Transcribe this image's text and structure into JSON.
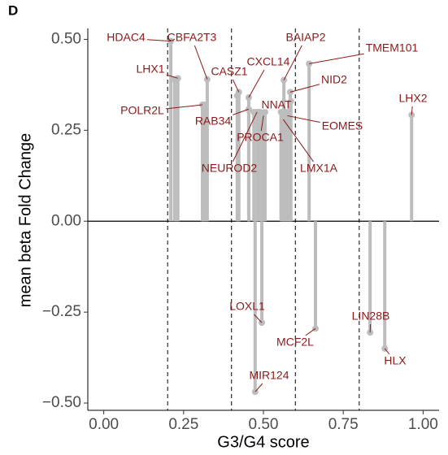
{
  "chart_data": {
    "type": "lollipop",
    "panel_label": "D",
    "x_label": "G3/G4 score",
    "y_label": "mean beta Fold Change",
    "x": [
      0.21,
      0.232,
      0.324,
      0.309,
      0.423,
      0.454,
      0.454,
      0.49,
      0.564,
      0.584,
      0.643,
      0.575,
      0.562,
      0.5,
      0.48,
      0.964,
      0.495,
      0.474,
      0.663,
      0.834,
      0.88,
      0.222,
      0.315,
      0.418,
      0.47,
      0.485,
      0.505,
      0.555,
      0.57,
      0.58,
      0.586
    ],
    "values": [
      0.495,
      0.393,
      0.39,
      0.32,
      0.355,
      0.308,
      0.34,
      0.3,
      0.388,
      0.355,
      0.433,
      0.29,
      0.28,
      0.29,
      0.3,
      0.292,
      -0.279,
      -0.469,
      -0.295,
      -0.306,
      -0.35,
      0.39,
      0.32,
      0.345,
      0.3,
      0.3,
      0.3,
      0.3,
      0.3,
      0.3,
      0.33
    ],
    "labels": [
      "HDAC4",
      "LHX1",
      "CBFA2T3",
      "POLR2L",
      "CASZ1",
      "RAB34",
      "CXCL14",
      "NNAT",
      "BAIAP2",
      "NID2",
      "TMEM101",
      "EOMES",
      "LMX1A",
      "PROCA1",
      "NEUROD2",
      "LHX2",
      "LOXL1",
      "MIR124",
      "MCF2L",
      "LIN28B",
      "HLX",
      null,
      null,
      null,
      null,
      null,
      null,
      null,
      null,
      null,
      null
    ],
    "color": "#bdbdbd",
    "label_color": "#8b1a1a",
    "xlim": [
      -0.05,
      1.05
    ],
    "ylim": [
      -0.52,
      0.53
    ],
    "xticks": [
      {
        "value": 0,
        "label": "0.00"
      },
      0.25,
      {
        "value": 0.5,
        "label": "0.50"
      },
      0.75,
      {
        "value": 1,
        "label": "1.00"
      }
    ],
    "yticks": [
      {
        "value": -0.5,
        "label": "−0.50"
      },
      {
        "value": -0.25,
        "label": "−0.25"
      },
      {
        "value": 0,
        "label": "0.00"
      },
      0.25,
      {
        "value": 0.5,
        "label": "0.50"
      }
    ],
    "vlines": [
      0.2,
      0.4,
      0.6,
      0.8
    ],
    "hline": 0
  }
}
